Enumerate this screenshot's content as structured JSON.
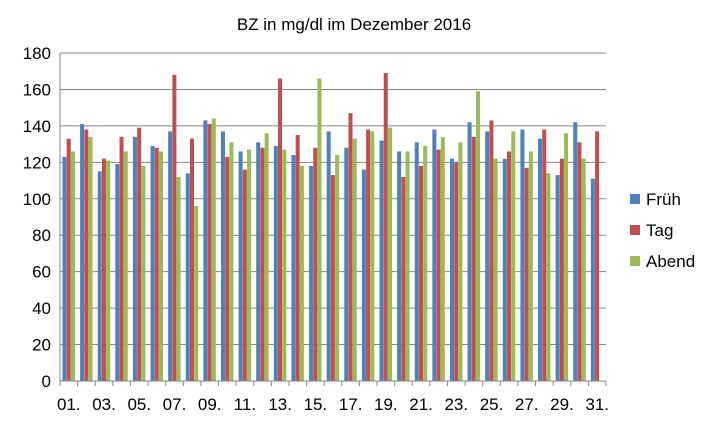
{
  "chart_data": {
    "type": "bar",
    "title": "BZ in mg/dl im Dezember 2016",
    "xlabel": "",
    "ylabel": "",
    "ylim": [
      0,
      180
    ],
    "yticks": [
      0,
      20,
      40,
      60,
      80,
      100,
      120,
      140,
      160,
      180
    ],
    "grid": true,
    "legend_position": "right",
    "categories": [
      "01.",
      "02.",
      "03.",
      "04.",
      "05.",
      "06.",
      "07.",
      "08.",
      "09.",
      "10.",
      "11.",
      "12.",
      "13.",
      "14.",
      "15.",
      "16.",
      "17.",
      "18.",
      "19.",
      "20.",
      "21.",
      "22.",
      "23.",
      "24.",
      "25.",
      "26.",
      "27.",
      "28.",
      "29.",
      "30.",
      "31."
    ],
    "shown_x_labels": [
      "01.",
      "03.",
      "05.",
      "07.",
      "09.",
      "11.",
      "13.",
      "15.",
      "17.",
      "19.",
      "21.",
      "23.",
      "25.",
      "27.",
      "29.",
      "31."
    ],
    "series": [
      {
        "name": "Früh",
        "color": "#4f81bd",
        "values": [
          123,
          141,
          115,
          119,
          134,
          129,
          137,
          114,
          143,
          137,
          126,
          131,
          129,
          124,
          118,
          137,
          128,
          116,
          132,
          126,
          131,
          138,
          122,
          142,
          137,
          122,
          138,
          133,
          113,
          142,
          111
        ]
      },
      {
        "name": "Tag",
        "color": "#c0504d",
        "values": [
          133,
          138,
          122,
          134,
          139,
          128,
          168,
          133,
          141,
          123,
          116,
          128,
          166,
          135,
          128,
          113,
          147,
          138,
          169,
          112,
          118,
          127,
          120,
          134,
          143,
          126,
          117,
          138,
          122,
          131,
          137
        ]
      },
      {
        "name": "Abend",
        "color": "#9bbb59",
        "values": [
          126,
          134,
          121,
          126,
          118,
          126,
          112,
          96,
          144,
          131,
          127,
          136,
          127,
          118,
          166,
          124,
          133,
          137,
          139,
          126,
          129,
          134,
          131,
          159,
          122,
          137,
          126,
          114,
          136,
          122,
          null
        ]
      }
    ]
  }
}
